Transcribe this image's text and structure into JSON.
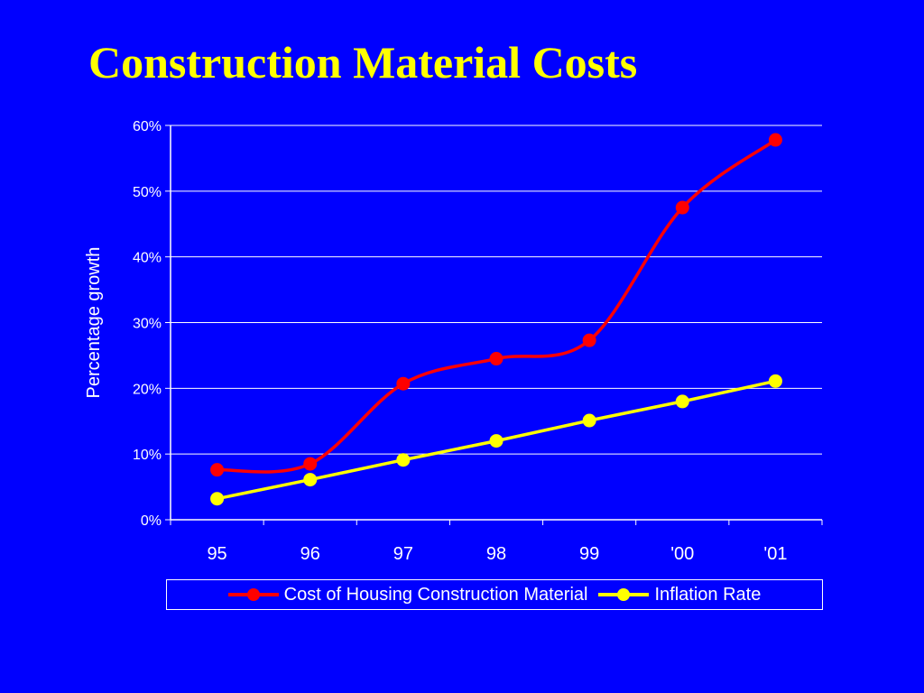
{
  "slide": {
    "title": "Construction Material Costs",
    "background_color": "#0000FF",
    "title_color": "#FFFF00"
  },
  "chart_data": {
    "type": "line",
    "title": "",
    "xlabel": "",
    "ylabel": "Percentage growth",
    "categories": [
      "95",
      "96",
      "97",
      "98",
      "99",
      "'00",
      "'01"
    ],
    "ylim": [
      0,
      60
    ],
    "yticks": [
      0,
      10,
      20,
      30,
      40,
      50,
      60
    ],
    "ytick_labels": [
      "0%",
      "10%",
      "20%",
      "30%",
      "40%",
      "50%",
      "60%"
    ],
    "grid": true,
    "legend_position": "bottom",
    "series": [
      {
        "name": "Cost of Housing Construction Material",
        "color": "#FF0000",
        "smooth": true,
        "values": [
          7.6,
          8.5,
          20.7,
          24.5,
          27.3,
          47.5,
          57.8
        ]
      },
      {
        "name": "Inflation Rate",
        "color": "#FFFF00",
        "smooth": false,
        "values": [
          3.2,
          6.1,
          9.1,
          12.0,
          15.1,
          18.0,
          21.1
        ]
      }
    ]
  }
}
